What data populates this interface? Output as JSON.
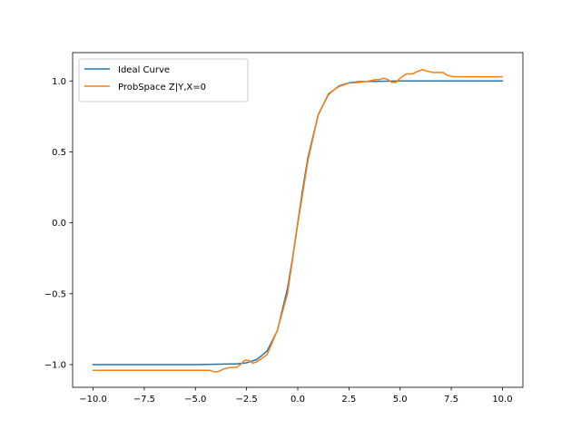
{
  "chart_data": {
    "type": "line",
    "title": "",
    "xlabel": "",
    "ylabel": "",
    "xlim": [
      -11.0,
      11.0
    ],
    "ylim": [
      -1.16,
      1.2
    ],
    "xticks": [
      -10.0,
      -7.5,
      -5.0,
      -2.5,
      0.0,
      2.5,
      5.0,
      7.5,
      10.0
    ],
    "xtick_labels": [
      "−10.0",
      "−7.5",
      "−5.0",
      "−2.5",
      "0.0",
      "2.5",
      "5.0",
      "7.5",
      "10.0"
    ],
    "yticks": [
      -1.0,
      -0.5,
      0.0,
      0.5,
      1.0
    ],
    "ytick_labels": [
      "−1.0",
      "−0.5",
      "0.0",
      "0.5",
      "1.0"
    ],
    "grid": false,
    "legend_position": "top-left",
    "series": [
      {
        "name": "Ideal Curve",
        "color": "#1f77b4",
        "x": [
          -10,
          -5,
          -3,
          -2.5,
          -2,
          -1.5,
          -1,
          -0.5,
          -0.25,
          0,
          0.25,
          0.5,
          1,
          1.5,
          2,
          2.5,
          3,
          5,
          10
        ],
        "y": [
          -1.0,
          -1.0,
          -0.995,
          -0.987,
          -0.964,
          -0.905,
          -0.762,
          -0.462,
          -0.245,
          0.0,
          0.245,
          0.462,
          0.762,
          0.905,
          0.964,
          0.987,
          0.995,
          1.0,
          1.0
        ]
      },
      {
        "name": "ProbSpace Z|Y,X=0",
        "color": "#ff7f0e",
        "x": [
          -10,
          -5,
          -4.6,
          -4.3,
          -4.1,
          -3.9,
          -3.6,
          -3.3,
          -3.0,
          -2.8,
          -2.6,
          -2.4,
          -2.2,
          -2.0,
          -1.5,
          -1.0,
          -0.5,
          0,
          0.5,
          1.0,
          1.5,
          2.0,
          2.5,
          3.0,
          3.5,
          3.8,
          4.0,
          4.2,
          4.4,
          4.6,
          4.8,
          5.0,
          5.3,
          5.6,
          5.9,
          6.1,
          6.3,
          6.6,
          6.9,
          7.1,
          7.3,
          7.6,
          8.0,
          10.0
        ],
        "y": [
          -1.04,
          -1.04,
          -1.04,
          -1.04,
          -1.05,
          -1.05,
          -1.03,
          -1.02,
          -1.02,
          -1.0,
          -0.97,
          -0.97,
          -0.99,
          -0.98,
          -0.93,
          -0.76,
          -0.5,
          -0.01,
          0.44,
          0.76,
          0.91,
          0.96,
          0.985,
          0.99,
          1.0,
          1.01,
          1.01,
          1.02,
          1.01,
          0.99,
          0.99,
          1.02,
          1.05,
          1.05,
          1.07,
          1.08,
          1.07,
          1.06,
          1.06,
          1.06,
          1.04,
          1.03,
          1.03,
          1.03
        ]
      }
    ]
  }
}
